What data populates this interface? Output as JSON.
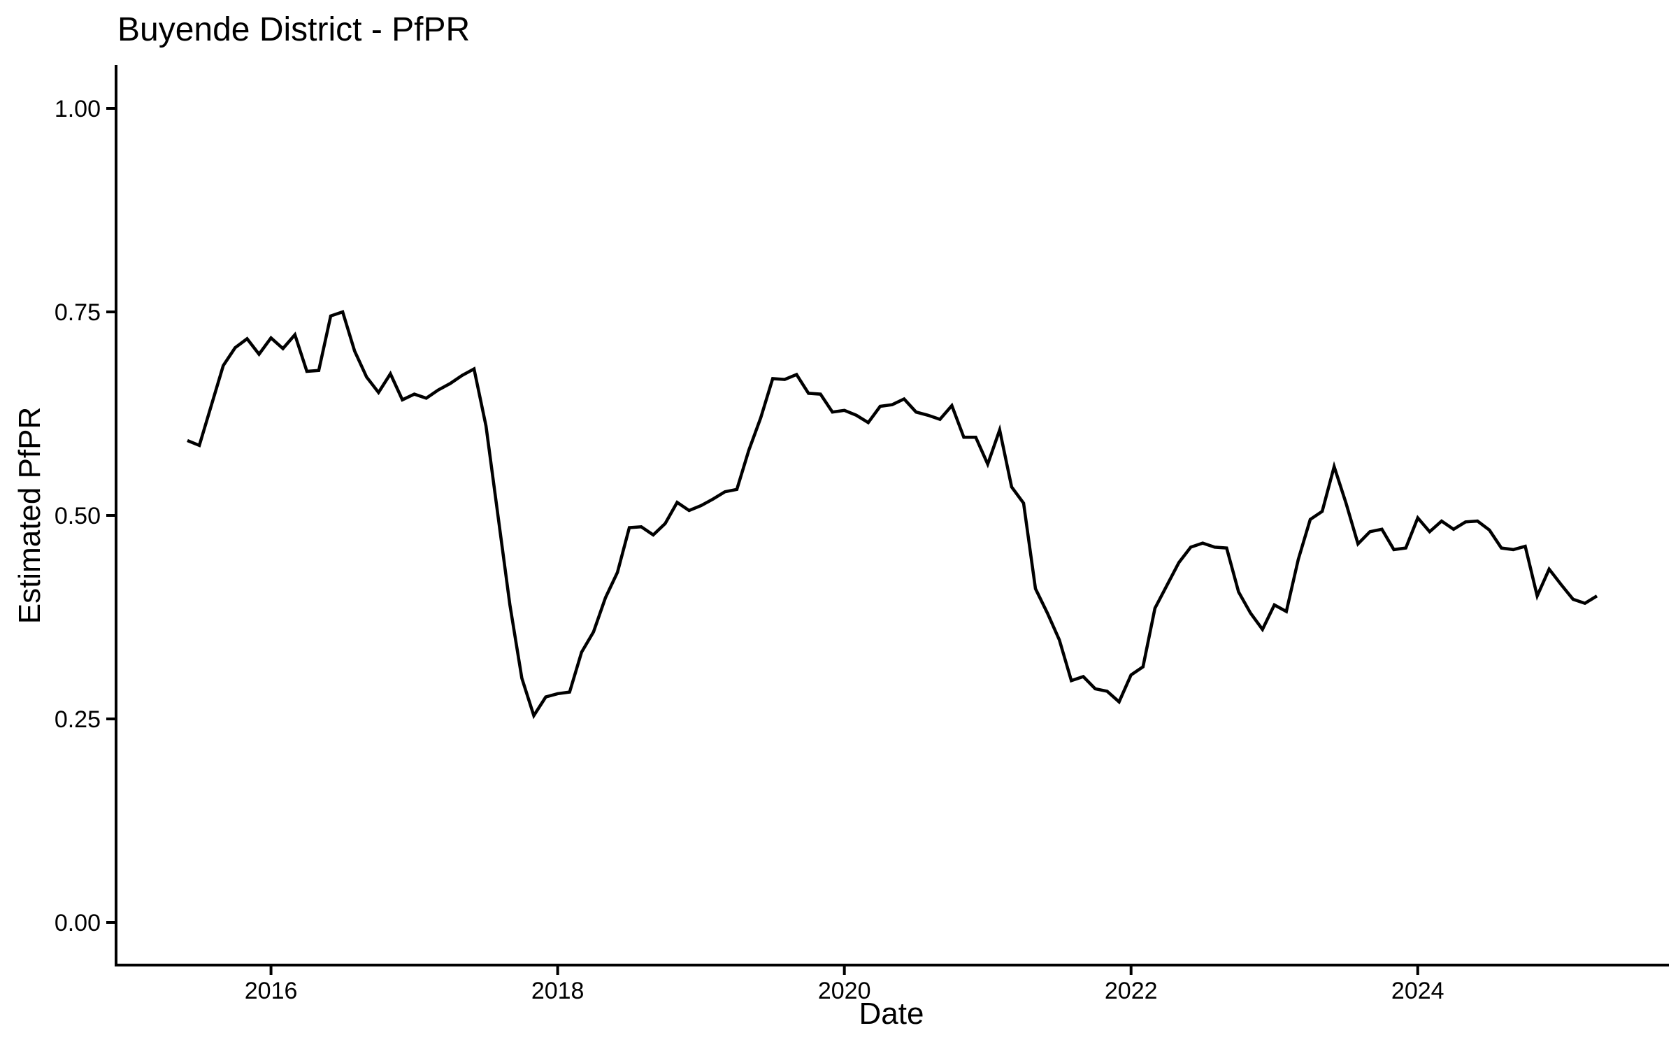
{
  "page": {
    "background_color": "#ffffff",
    "foreground_color": "#000000"
  },
  "chart_data": {
    "type": "line",
    "title": "Buyende District - PfPR",
    "xlabel": "Date",
    "ylabel": "Estimated PfPR",
    "grid": false,
    "legend": false,
    "line_color": "#000000",
    "background_color": "#ffffff",
    "ylim": [
      0,
      1
    ],
    "y_tick_values": [
      0,
      0.25,
      0.5,
      0.75,
      1
    ],
    "y_tick_labels": [
      "0.00",
      "0.25",
      "0.50",
      "0.75",
      "1.00"
    ],
    "x_tick_months": [
      "2016-01",
      "2018-01",
      "2020-01",
      "2022-01",
      "2024-01"
    ],
    "x_tick_labels": [
      "2016",
      "2018",
      "2020",
      "2022",
      "2024"
    ],
    "x_start_month": "2015-06",
    "x_end_month": "2025-04",
    "series": [
      {
        "name": "Estimated PfPR",
        "x": [
          "2015-06",
          "2015-07",
          "2015-08",
          "2015-09",
          "2015-10",
          "2015-11",
          "2015-12",
          "2016-01",
          "2016-02",
          "2016-03",
          "2016-04",
          "2016-05",
          "2016-06",
          "2016-07",
          "2016-08",
          "2016-09",
          "2016-10",
          "2016-11",
          "2016-12",
          "2017-01",
          "2017-02",
          "2017-03",
          "2017-04",
          "2017-05",
          "2017-06",
          "2017-07",
          "2017-08",
          "2017-09",
          "2017-10",
          "2017-11",
          "2017-12",
          "2018-01",
          "2018-02",
          "2018-03",
          "2018-04",
          "2018-05",
          "2018-06",
          "2018-07",
          "2018-08",
          "2018-09",
          "2018-10",
          "2018-11",
          "2018-12",
          "2019-01",
          "2019-02",
          "2019-03",
          "2019-04",
          "2019-05",
          "2019-06",
          "2019-07",
          "2019-08",
          "2019-09",
          "2019-10",
          "2019-11",
          "2019-12",
          "2020-01",
          "2020-02",
          "2020-03",
          "2020-04",
          "2020-05",
          "2020-06",
          "2020-07",
          "2020-08",
          "2020-09",
          "2020-10",
          "2020-11",
          "2020-12",
          "2021-01",
          "2021-02",
          "2021-03",
          "2021-04",
          "2021-05",
          "2021-06",
          "2021-07",
          "2021-08",
          "2021-09",
          "2021-10",
          "2021-11",
          "2021-12",
          "2022-01",
          "2022-02",
          "2022-03",
          "2022-04",
          "2022-05",
          "2022-06",
          "2022-07",
          "2022-08",
          "2022-09",
          "2022-10",
          "2022-11",
          "2022-12",
          "2023-01",
          "2023-02",
          "2023-03",
          "2023-04",
          "2023-05",
          "2023-06",
          "2023-07",
          "2023-08",
          "2023-09",
          "2023-10",
          "2023-11",
          "2023-12",
          "2024-01",
          "2024-02",
          "2024-03",
          "2024-04",
          "2024-05",
          "2024-06",
          "2024-07",
          "2024-08",
          "2024-09",
          "2024-10",
          "2024-11",
          "2024-12",
          "2025-01",
          "2025-02",
          "2025-03",
          "2025-04"
        ],
        "values": [
          0.592,
          0.586,
          0.635,
          0.684,
          0.706,
          0.717,
          0.698,
          0.718,
          0.705,
          0.722,
          0.677,
          0.678,
          0.745,
          0.75,
          0.702,
          0.67,
          0.651,
          0.674,
          0.642,
          0.649,
          0.644,
          0.654,
          0.662,
          0.672,
          0.68,
          0.61,
          0.5,
          0.39,
          0.3,
          0.254,
          0.277,
          0.281,
          0.283,
          0.332,
          0.357,
          0.399,
          0.43,
          0.485,
          0.486,
          0.476,
          0.49,
          0.516,
          0.506,
          0.512,
          0.52,
          0.529,
          0.532,
          0.58,
          0.62,
          0.668,
          0.667,
          0.673,
          0.65,
          0.649,
          0.627,
          0.629,
          0.623,
          0.614,
          0.634,
          0.636,
          0.643,
          0.627,
          0.623,
          0.618,
          0.635,
          0.596,
          0.596,
          0.563,
          0.605,
          0.535,
          0.515,
          0.41,
          0.38,
          0.347,
          0.297,
          0.302,
          0.287,
          0.284,
          0.271,
          0.304,
          0.314,
          0.386,
          0.414,
          0.442,
          0.461,
          0.466,
          0.461,
          0.46,
          0.406,
          0.38,
          0.36,
          0.39,
          0.382,
          0.446,
          0.495,
          0.505,
          0.56,
          0.515,
          0.465,
          0.48,
          0.483,
          0.458,
          0.46,
          0.497,
          0.48,
          0.493,
          0.483,
          0.492,
          0.493,
          0.482,
          0.46,
          0.458,
          0.462,
          0.401,
          0.434,
          0.415,
          0.397,
          0.392,
          0.401
        ]
      }
    ]
  }
}
